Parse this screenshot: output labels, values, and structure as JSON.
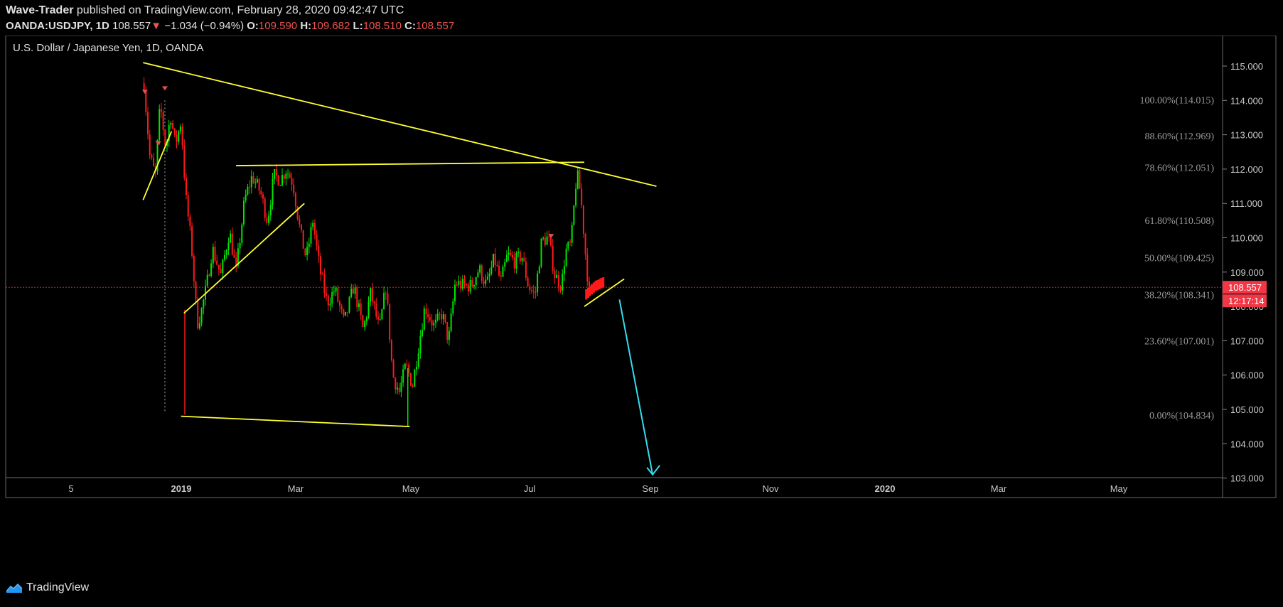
{
  "header": {
    "author": "Wave-Trader",
    "published_text": " published on TradingView.com, February 28, 2020 09:42:47 UTC",
    "symbol": "OANDA:USDJPY, 1D",
    "last": "108.557",
    "change_arrow": "▼",
    "change": "−1.034 (−0.94%)",
    "open_label": "O:",
    "open": "109.590",
    "high_label": "H:",
    "high": "109.682",
    "low_label": "L:",
    "low": "108.510",
    "close_label": "C:",
    "close": "108.557"
  },
  "chart_title": "U.S. Dollar / Japanese Yen, 1D, OANDA",
  "footer": {
    "brand": "TradingView",
    "logo_icon": "tradingview-logo-icon"
  },
  "colors": {
    "up": "#00e600",
    "down": "#ff1a1a",
    "trendline": "#ffff33",
    "arrow": "#33ddee",
    "price_tag": "#f23645",
    "fib_text": "#9a9a9a"
  },
  "chart_data": {
    "type": "candlestick",
    "symbol": "OANDA:USDJPY",
    "interval": "1D",
    "y_ticks": [
      "115.000",
      "114.000",
      "113.000",
      "112.000",
      "111.000",
      "110.000",
      "109.000",
      "108.000",
      "107.000",
      "106.000",
      "105.000",
      "104.000",
      "103.000"
    ],
    "y_range": [
      102.9,
      115.6
    ],
    "x_ticks": [
      "5",
      "2019",
      "Mar",
      "May",
      "Jul",
      "Sep",
      "Nov",
      "2020",
      "Mar",
      "May"
    ],
    "x_bold": [
      "2019",
      "2020"
    ],
    "fib_levels": [
      {
        "label": "100.00%(114.015)",
        "price": 114.015
      },
      {
        "label": "88.60%(112.969)",
        "price": 112.969
      },
      {
        "label": "78.60%(112.051)",
        "price": 112.051
      },
      {
        "label": "61.80%(110.508)",
        "price": 110.508
      },
      {
        "label": "50.00%(109.425)",
        "price": 109.425
      },
      {
        "label": "38.20%(108.341)",
        "price": 108.341
      },
      {
        "label": "23.60%(107.001)",
        "price": 107.001
      },
      {
        "label": "0.00%(104.834)",
        "price": 104.834
      }
    ],
    "last_price": "108.557",
    "countdown": "12:17:14",
    "path_points": [
      [
        "2018-11-21",
        114.5
      ],
      [
        "2018-11-27",
        112.4
      ],
      [
        "2018-12-03",
        111.8
      ],
      [
        "2018-12-08",
        113.9
      ],
      [
        "2018-12-14",
        112.6
      ],
      [
        "2018-12-19",
        113.6
      ],
      [
        "2018-12-24",
        112.7
      ],
      [
        "2018-12-30",
        113.4
      ],
      [
        "2019-01-04",
        111.2
      ],
      [
        "2019-01-10",
        109.8
      ],
      [
        "2019-01-16",
        107.5
      ],
      [
        "2019-01-20",
        107.8
      ],
      [
        "2019-01-26",
        108.6
      ],
      [
        "2019-02-01",
        109.7
      ],
      [
        "2019-02-10",
        108.9
      ],
      [
        "2019-02-19",
        110.2
      ],
      [
        "2019-02-26",
        109.0
      ],
      [
        "2019-03-07",
        111.1
      ],
      [
        "2019-03-15",
        111.8
      ],
      [
        "2019-03-24",
        111.3
      ],
      [
        "2019-03-31",
        110.5
      ],
      [
        "2019-04-07",
        111.8
      ],
      [
        "2019-04-14",
        111.7
      ],
      [
        "2019-04-20",
        112.0
      ],
      [
        "2019-04-27",
        111.6
      ],
      [
        "2019-05-05",
        110.1
      ],
      [
        "2019-05-11",
        109.4
      ],
      [
        "2019-05-18",
        110.5
      ],
      [
        "2019-05-25",
        109.1
      ],
      [
        "2019-06-02",
        108.1
      ],
      [
        "2019-06-10",
        108.5
      ],
      [
        "2019-06-20",
        107.5
      ],
      [
        "2019-06-30",
        108.6
      ],
      [
        "2019-07-10",
        107.3
      ],
      [
        "2019-07-18",
        108.4
      ],
      [
        "2019-07-27",
        107.3
      ],
      [
        "2019-08-03",
        108.6
      ],
      [
        "2019-08-10",
        106.0
      ],
      [
        "2019-08-17",
        105.5
      ],
      [
        "2019-08-24",
        106.3
      ],
      [
        "2019-08-31",
        105.7
      ],
      [
        "2019-09-06",
        106.8
      ],
      [
        "2019-09-13",
        108.0
      ],
      [
        "2019-09-23",
        107.4
      ],
      [
        "2019-10-01",
        107.8
      ],
      [
        "2019-10-08",
        107.0
      ],
      [
        "2019-10-15",
        108.7
      ],
      [
        "2019-10-23",
        108.6
      ],
      [
        "2019-11-01",
        108.6
      ],
      [
        "2019-11-09",
        109.1
      ],
      [
        "2019-11-17",
        108.6
      ],
      [
        "2019-11-25",
        109.4
      ],
      [
        "2019-12-02",
        108.7
      ],
      [
        "2019-12-09",
        109.5
      ],
      [
        "2019-12-17",
        109.3
      ],
      [
        "2019-12-24",
        109.5
      ],
      [
        "2019-12-31",
        108.6
      ],
      [
        "2020-01-07",
        108.3
      ],
      [
        "2020-01-14",
        109.9
      ],
      [
        "2020-01-21",
        110.0
      ],
      [
        "2020-01-28",
        108.9
      ],
      [
        "2020-02-04",
        108.6
      ],
      [
        "2020-02-08",
        109.6
      ],
      [
        "2020-02-14",
        109.8
      ],
      [
        "2020-02-20",
        111.9
      ],
      [
        "2020-02-24",
        111.3
      ],
      [
        "2020-02-27",
        110.3
      ],
      [
        "2020-02-29",
        109.6
      ],
      [
        "2020-03-04",
        108.4
      ],
      [
        "2020-03-10",
        108.5
      ]
    ],
    "projection_bars": [
      [
        "2020-03-01",
        108.35
      ],
      [
        "2020-03-03",
        108.4
      ],
      [
        "2020-03-05",
        108.45
      ],
      [
        "2020-03-07",
        108.5
      ],
      [
        "2020-03-09",
        108.55
      ],
      [
        "2020-03-11",
        108.6
      ],
      [
        "2020-03-13",
        108.62
      ],
      [
        "2020-03-15",
        108.65
      ],
      [
        "2020-03-17",
        108.68
      ],
      [
        "2020-03-19",
        108.7
      ]
    ],
    "pivot_markers": [
      [
        "2018-11-22",
        114.25
      ],
      [
        "2018-12-06",
        112.75
      ],
      [
        "2018-12-13",
        114.35
      ],
      [
        "2020-01-24",
        110.05
      ]
    ],
    "trendlines": [
      {
        "from": [
          "2018-11-20",
          115.1
        ],
        "to": [
          "2020-05-14",
          111.5
        ]
      },
      {
        "from": [
          "2019-02-26",
          112.1
        ],
        "to": [
          "2020-02-28",
          112.2
        ]
      },
      {
        "from": [
          "2018-11-20",
          111.1
        ],
        "to": [
          "2018-12-20",
          113.1
        ]
      },
      {
        "from": [
          "2019-01-02",
          107.8
        ],
        "to": [
          "2019-05-09",
          111.0
        ]
      },
      {
        "from": [
          "2018-12-30",
          104.8
        ],
        "to": [
          "2019-08-28",
          104.5
        ]
      },
      {
        "from": [
          "2020-02-28",
          108.0
        ],
        "to": [
          "2020-04-10",
          108.8
        ]
      }
    ],
    "vertical_dotted": [
      "2018-12-13",
      114.0,
      104.9
    ],
    "arrow": {
      "from": [
        "2020-04-05",
        108.2
      ],
      "to": [
        "2020-05-10",
        103.1
      ]
    },
    "grid": false,
    "legend": "none"
  }
}
